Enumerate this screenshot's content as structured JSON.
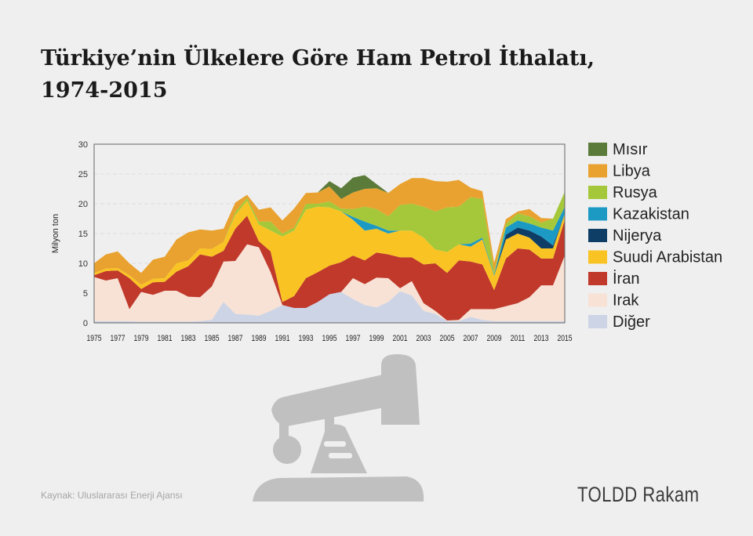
{
  "title_line1": "Türkiye’nin Ülkelere Göre Ham Petrol İthalatı,",
  "title_line2": "1974-2015",
  "source": "Kaynak: Uluslararası Enerji Ajansı",
  "brand": "TOLDD Rakam",
  "colors": {
    "background": "#efefef",
    "grid": "#dcdcdc",
    "pump": "#c0c0c0"
  },
  "chart_data": {
    "type": "area",
    "stacked": true,
    "ylabel": "Milyon ton",
    "ylim": [
      0,
      30
    ],
    "yticks": [
      0,
      5,
      10,
      15,
      20,
      25,
      30
    ],
    "xlim": [
      1975,
      2015
    ],
    "xticks": [
      "1975",
      "1977",
      "1979",
      "1981",
      "1983",
      "1985",
      "1987",
      "1989",
      "1991",
      "1993",
      "1995",
      "1997",
      "1999",
      "2001",
      "2003",
      "2005",
      "2007",
      "2009",
      "2011",
      "2013",
      "2015"
    ],
    "legend_position": "right",
    "x": [
      1975,
      1976,
      1977,
      1978,
      1979,
      1980,
      1981,
      1982,
      1983,
      1984,
      1985,
      1986,
      1987,
      1988,
      1989,
      1990,
      1991,
      1992,
      1993,
      1994,
      1995,
      1996,
      1997,
      1998,
      1999,
      2000,
      2001,
      2002,
      2003,
      2004,
      2005,
      2006,
      2007,
      2008,
      2009,
      2010,
      2011,
      2012,
      2013,
      2014,
      2015
    ],
    "series": [
      {
        "name": "Diğer",
        "color": "#ccd4e6",
        "values": [
          0.3,
          0.3,
          0.3,
          0.3,
          0.2,
          0.2,
          0.2,
          0.2,
          0.2,
          0.3,
          0.5,
          3.5,
          1.5,
          1.4,
          1.2,
          2.0,
          3.0,
          2.5,
          2.5,
          3.5,
          4.8,
          5.2,
          4.0,
          3.0,
          2.6,
          3.5,
          5.3,
          4.6,
          2.0,
          1.5,
          0.3,
          0.3,
          1.0,
          0.5,
          0.3,
          0.3,
          0.3,
          0.3,
          0.3,
          0.3,
          0.3
        ]
      },
      {
        "name": "Irak",
        "color": "#f8e2d6",
        "values": [
          7.4,
          6.8,
          7.2,
          2.0,
          5.0,
          4.5,
          5.2,
          5.2,
          4.2,
          4.0,
          5.6,
          6.8,
          8.9,
          11.8,
          11.5,
          6.5,
          0,
          0,
          0,
          0,
          0,
          0,
          3.5,
          3.5,
          5.0,
          4.0,
          0.5,
          2.4,
          1.3,
          0.5,
          0.1,
          0.2,
          1.3,
          1.8,
          2.0,
          2.5,
          3.0,
          4.0,
          6.0,
          6.0,
          11.0
        ]
      },
      {
        "name": "İran",
        "color": "#c0392b",
        "values": [
          0.3,
          1.6,
          1.3,
          5.2,
          0.5,
          2.1,
          1.5,
          3.2,
          5.1,
          7.2,
          5.0,
          1.8,
          5.4,
          4.8,
          1.0,
          3.5,
          0.5,
          2.0,
          5.0,
          5.0,
          4.8,
          5.0,
          3.8,
          4.0,
          4.2,
          4.0,
          5.2,
          4.0,
          6.5,
          8.0,
          8.0,
          10.0,
          8.0,
          7.5,
          3.2,
          8.0,
          9.2,
          8.0,
          4.5,
          4.5,
          6.0
        ]
      },
      {
        "name": "Suudi Arabistan",
        "color": "#f9c423",
        "values": [
          0.4,
          0.4,
          0.4,
          0.5,
          0.7,
          0.6,
          0.6,
          1.4,
          1.0,
          1.0,
          1.3,
          1.5,
          2.3,
          2.5,
          2.8,
          3.5,
          11.0,
          11.0,
          11.5,
          11.0,
          9.8,
          8.5,
          6.0,
          5.0,
          4.0,
          3.5,
          4.5,
          4.5,
          4.5,
          2.3,
          3.5,
          2.7,
          2.5,
          4.2,
          2.4,
          3.2,
          2.5,
          2.0,
          1.7,
          1.7,
          1.0
        ]
      },
      {
        "name": "Nijerya",
        "color": "#0e3e66",
        "values": [
          0,
          0,
          0,
          0,
          0,
          0,
          0,
          0,
          0,
          0,
          0,
          0,
          0,
          0,
          0,
          0,
          0,
          0,
          0,
          0,
          0,
          0,
          0,
          0,
          0,
          0,
          0,
          0,
          0,
          0,
          0,
          0,
          0,
          0,
          0,
          0.8,
          1.0,
          1.2,
          2.0,
          0.5,
          0
        ]
      },
      {
        "name": "Kazakistan",
        "color": "#1c9ac4",
        "values": [
          0,
          0,
          0,
          0,
          0,
          0,
          0,
          0,
          0,
          0,
          0,
          0,
          0,
          0,
          0,
          0,
          0,
          0,
          0,
          0,
          0,
          0,
          0.5,
          1.5,
          0.5,
          0.5,
          0,
          0,
          0,
          0,
          0,
          0,
          0.5,
          0.3,
          0.2,
          1.2,
          1.2,
          1.2,
          1.5,
          2.5,
          1.2
        ]
      },
      {
        "name": "Rusya",
        "color": "#a5c83a",
        "values": [
          0,
          0,
          0,
          0,
          0,
          0,
          0,
          0,
          0,
          0,
          0,
          0,
          0.5,
          0.5,
          0.5,
          1.5,
          0.5,
          0.5,
          1.0,
          0.5,
          1.0,
          0.5,
          1.3,
          2.5,
          2.8,
          2.4,
          4.3,
          4.5,
          5.2,
          6.4,
          7.5,
          6.3,
          7.8,
          6.5,
          0.5,
          0.6,
          1.2,
          1.2,
          0.8,
          2.0,
          2.5
        ]
      },
      {
        "name": "Libya",
        "color": "#e9a22f",
        "values": [
          1.6,
          2.4,
          2.8,
          2.0,
          2.0,
          3.2,
          3.6,
          4.0,
          4.7,
          3.2,
          3.1,
          2.2,
          1.6,
          0.5,
          2.0,
          2.4,
          2.2,
          3.2,
          1.8,
          1.9,
          2.5,
          1.6,
          2.8,
          3.0,
          3.5,
          3.9,
          3.5,
          4.3,
          4.8,
          5.1,
          4.3,
          4.5,
          1.6,
          1.3,
          1.5,
          0.8,
          0.3,
          1.2,
          0.8,
          0,
          0
        ]
      },
      {
        "name": "Mısır",
        "color": "#5b7b3a",
        "values": [
          0,
          0,
          0,
          0,
          0,
          0,
          0,
          0,
          0,
          0,
          0,
          0,
          0,
          0,
          0,
          0,
          0,
          0,
          0,
          0,
          0.9,
          1.8,
          2.5,
          2.3,
          0.7,
          0,
          0,
          0,
          0,
          0,
          0,
          0,
          0,
          0,
          0,
          0,
          0,
          0,
          0,
          0,
          0
        ]
      }
    ]
  }
}
